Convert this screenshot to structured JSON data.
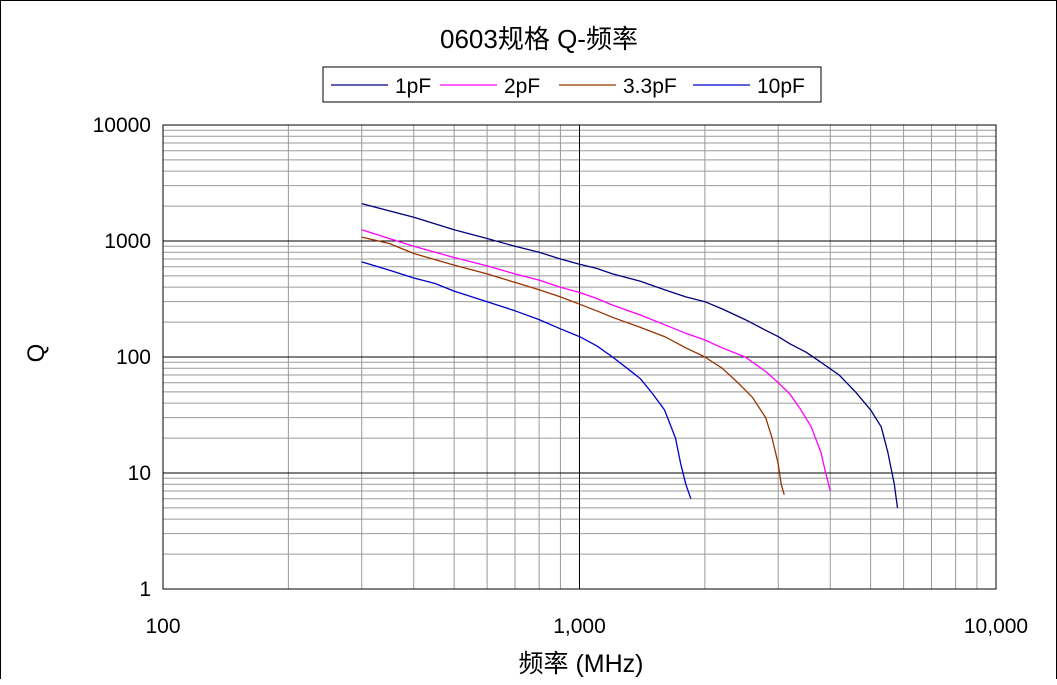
{
  "chart_data": {
    "type": "line",
    "title": "0603规格 Q-频率",
    "xlabel": "频率 (MHz)",
    "ylabel": "Q",
    "x_scale": "log",
    "y_scale": "log",
    "xlim": [
      100,
      10000
    ],
    "ylim": [
      1,
      10000
    ],
    "x_ticks": [
      100,
      1000,
      10000
    ],
    "x_tick_labels": [
      "100",
      "1,000",
      "10,000"
    ],
    "y_ticks": [
      1,
      10,
      100,
      1000,
      10000
    ],
    "y_tick_labels": [
      "1",
      "10",
      "100",
      "1000",
      "10000"
    ],
    "grid": true,
    "legend_position": "top-center",
    "series": [
      {
        "name": "1pF",
        "color": "#000080",
        "points": [
          [
            300,
            2100
          ],
          [
            400,
            1600
          ],
          [
            500,
            1250
          ],
          [
            600,
            1050
          ],
          [
            700,
            900
          ],
          [
            800,
            800
          ],
          [
            900,
            700
          ],
          [
            1000,
            630
          ],
          [
            1100,
            580
          ],
          [
            1200,
            520
          ],
          [
            1400,
            450
          ],
          [
            1600,
            380
          ],
          [
            1800,
            330
          ],
          [
            2000,
            300
          ],
          [
            2200,
            260
          ],
          [
            2500,
            210
          ],
          [
            2800,
            170
          ],
          [
            3000,
            150
          ],
          [
            3200,
            130
          ],
          [
            3500,
            110
          ],
          [
            3800,
            90
          ],
          [
            4200,
            70
          ],
          [
            4600,
            50
          ],
          [
            5000,
            35
          ],
          [
            5300,
            25
          ],
          [
            5500,
            15
          ],
          [
            5700,
            8
          ],
          [
            5800,
            5
          ]
        ]
      },
      {
        "name": "2pF",
        "color": "#ff00ff",
        "points": [
          [
            300,
            1250
          ],
          [
            400,
            900
          ],
          [
            500,
            720
          ],
          [
            600,
            610
          ],
          [
            700,
            520
          ],
          [
            800,
            460
          ],
          [
            900,
            400
          ],
          [
            1000,
            360
          ],
          [
            1100,
            320
          ],
          [
            1200,
            280
          ],
          [
            1400,
            230
          ],
          [
            1600,
            190
          ],
          [
            1800,
            160
          ],
          [
            2000,
            140
          ],
          [
            2200,
            120
          ],
          [
            2500,
            100
          ],
          [
            2800,
            75
          ],
          [
            3000,
            60
          ],
          [
            3200,
            48
          ],
          [
            3400,
            35
          ],
          [
            3600,
            25
          ],
          [
            3800,
            15
          ],
          [
            3900,
            10
          ],
          [
            4000,
            7
          ]
        ]
      },
      {
        "name": "3.3pF",
        "color": "#993300",
        "points": [
          [
            300,
            1080
          ],
          [
            350,
            950
          ],
          [
            400,
            780
          ],
          [
            500,
            620
          ],
          [
            600,
            520
          ],
          [
            700,
            440
          ],
          [
            800,
            380
          ],
          [
            900,
            330
          ],
          [
            1000,
            285
          ],
          [
            1100,
            250
          ],
          [
            1200,
            220
          ],
          [
            1400,
            180
          ],
          [
            1600,
            150
          ],
          [
            1800,
            120
          ],
          [
            2000,
            100
          ],
          [
            2200,
            80
          ],
          [
            2400,
            60
          ],
          [
            2600,
            45
          ],
          [
            2800,
            30
          ],
          [
            2900,
            20
          ],
          [
            3000,
            12
          ],
          [
            3050,
            8
          ],
          [
            3100,
            6.5
          ]
        ]
      },
      {
        "name": "10pF",
        "color": "#0000cc",
        "points": [
          [
            300,
            660
          ],
          [
            350,
            560
          ],
          [
            400,
            480
          ],
          [
            450,
            430
          ],
          [
            500,
            370
          ],
          [
            600,
            300
          ],
          [
            700,
            250
          ],
          [
            800,
            210
          ],
          [
            900,
            175
          ],
          [
            1000,
            150
          ],
          [
            1100,
            125
          ],
          [
            1200,
            100
          ],
          [
            1300,
            80
          ],
          [
            1400,
            65
          ],
          [
            1500,
            48
          ],
          [
            1600,
            35
          ],
          [
            1700,
            20
          ],
          [
            1750,
            12
          ],
          [
            1800,
            8
          ],
          [
            1850,
            6
          ]
        ]
      }
    ]
  }
}
